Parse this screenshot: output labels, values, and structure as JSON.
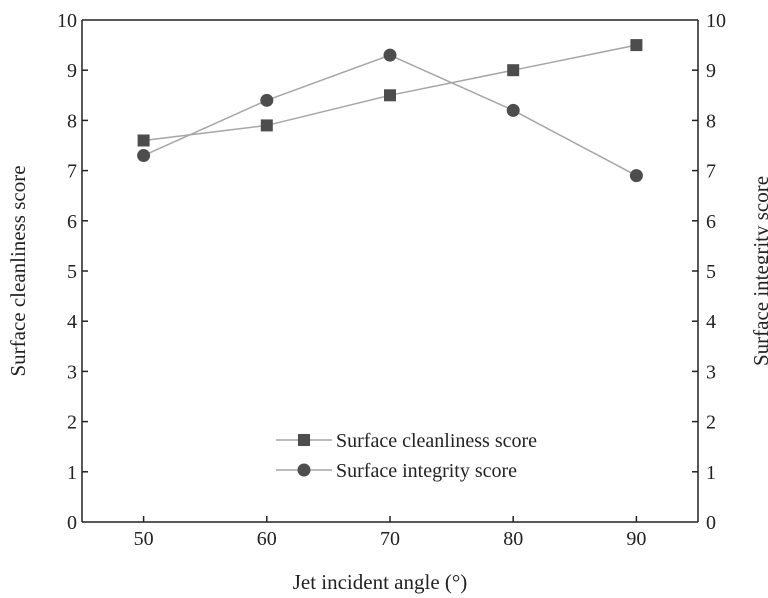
{
  "chart_data": {
    "type": "line",
    "title": "",
    "xlabel": "Jet incident angle (°)",
    "ylabel": "Surface cleanliness score",
    "y2label": "Surface integrity score",
    "x": [
      50,
      60,
      70,
      80,
      90
    ],
    "xticks": [
      "50",
      "60",
      "70",
      "80",
      "90"
    ],
    "xlim": [
      45,
      95
    ],
    "ylim": [
      0,
      10
    ],
    "y2lim": [
      0,
      10
    ],
    "yticks": [
      "0",
      "1",
      "2",
      "3",
      "4",
      "5",
      "6",
      "7",
      "8",
      "9",
      "10"
    ],
    "grid": false,
    "legend_position": "lower-center",
    "series": [
      {
        "name": "Surface cleanliness score",
        "axis": "left",
        "marker": "square",
        "color": "#4d4d4d",
        "line_color": "#a6a6a6",
        "values": [
          7.6,
          7.9,
          8.5,
          9.0,
          9.5
        ]
      },
      {
        "name": "Surface integrity score",
        "axis": "right",
        "marker": "circle",
        "color": "#4d4d4d",
        "line_color": "#a6a6a6",
        "values": [
          7.3,
          8.4,
          9.3,
          8.2,
          6.9
        ]
      }
    ]
  }
}
